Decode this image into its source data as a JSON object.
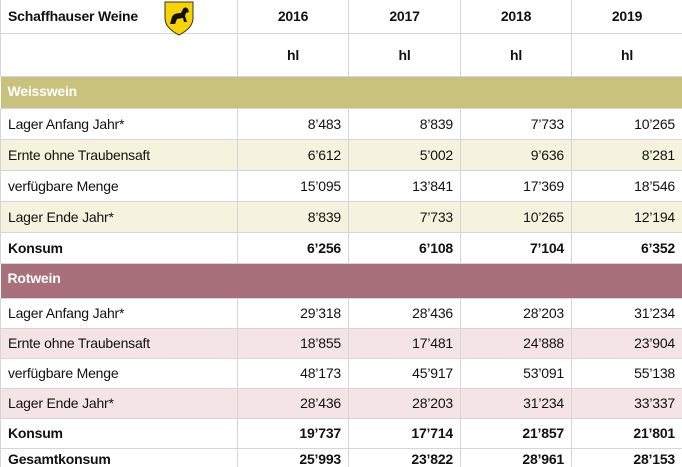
{
  "header": {
    "title": "Schaffhauser Weine",
    "years": [
      "2016",
      "2017",
      "2018",
      "2019"
    ],
    "units": [
      "hl",
      "hl",
      "hl",
      "hl"
    ]
  },
  "sections": [
    {
      "name": "Weisswein",
      "rows": [
        {
          "label": "Lager Anfang Jahr*",
          "values": [
            "8’483",
            "8’839",
            "7’733",
            "10’265"
          ]
        },
        {
          "label": "Ernte ohne Traubensaft",
          "values": [
            "6’612",
            "5’002",
            "9’636",
            "8’281"
          ]
        },
        {
          "label": "verfügbare Menge",
          "values": [
            "15’095",
            "13’841",
            "17’369",
            "18’546"
          ]
        },
        {
          "label": "Lager Ende Jahr*",
          "values": [
            "8’839",
            "7’733",
            "10’265",
            "12’194"
          ]
        },
        {
          "label": "Konsum",
          "values": [
            "6’256",
            "6’108",
            "7’104",
            "6’352"
          ]
        }
      ]
    },
    {
      "name": "Rotwein",
      "rows": [
        {
          "label": "Lager Anfang Jahr*",
          "values": [
            "29’318",
            "28’436",
            "28’203",
            "31’234"
          ]
        },
        {
          "label": "Ernte ohne Traubensaft",
          "values": [
            "18’855",
            "17’481",
            "24’888",
            "23’904"
          ]
        },
        {
          "label": "verfügbare Menge",
          "values": [
            "48’173",
            "45’917",
            "53’091",
            "55’138"
          ]
        },
        {
          "label": "Lager Ende Jahr*",
          "values": [
            "28’436",
            "28’203",
            "31’234",
            "33’337"
          ]
        },
        {
          "label": "Konsum",
          "values": [
            "19’737",
            "17’714",
            "21’857",
            "21’801"
          ]
        }
      ]
    }
  ],
  "total": {
    "label": "Gesamtkonsum",
    "values": [
      "25’993",
      "23’822",
      "28’961",
      "28’153"
    ]
  }
}
